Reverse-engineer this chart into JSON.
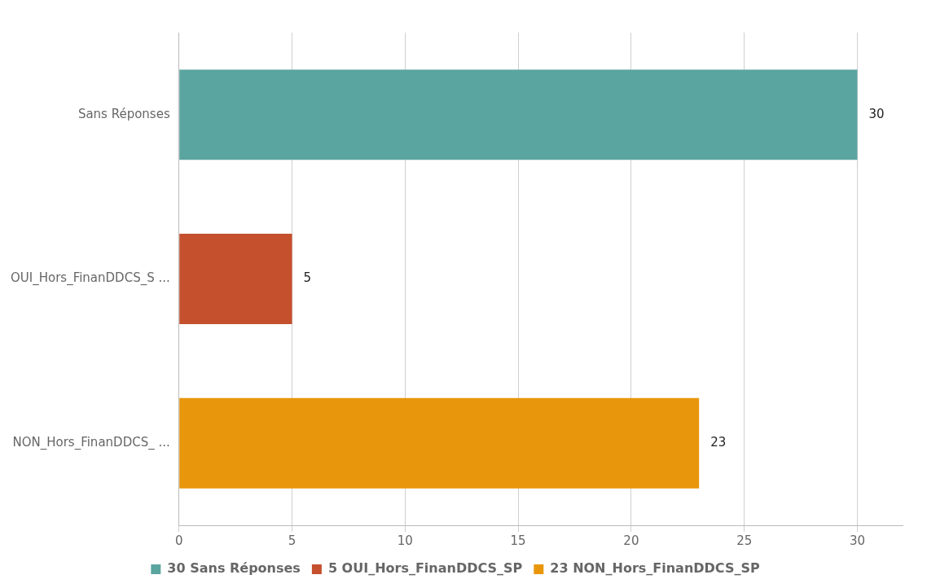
{
  "chart_data": {
    "type": "bar",
    "orientation": "horizontal",
    "categories": [
      "Sans Réponses",
      "OUI_Hors_FinanDDCS_S ...",
      "NON_Hors_FinanDDCS_ ..."
    ],
    "series": [
      {
        "name": "30 Sans Réponses",
        "color": "#5ba5a0",
        "values": [
          30,
          null,
          null
        ]
      },
      {
        "name": "5 OUI_Hors_FinanDDCS_SP",
        "color": "#c4502e",
        "values": [
          null,
          5,
          null
        ]
      },
      {
        "name": "23 NON_Hors_FinanDDCS_SP",
        "color": "#e8960c",
        "values": [
          null,
          null,
          23
        ]
      }
    ],
    "xlim": [
      0,
      32
    ],
    "xticks": [
      0,
      5,
      10,
      15,
      20,
      25,
      30
    ],
    "grid": "x",
    "legend": "bottom",
    "data_labels": true
  }
}
